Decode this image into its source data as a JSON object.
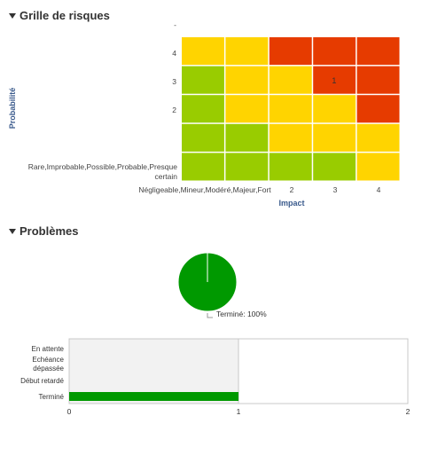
{
  "sections": {
    "risk_title": "Grille de risques",
    "problems_title": "Problèmes"
  },
  "chart_data": [
    {
      "type": "heatmap",
      "xlabel": "Impact",
      "ylabel": "Probabilité",
      "x_tick_labels": [
        "Négligeable,Mineur,Modéré,Majeur,Fort",
        "2",
        "3",
        "4"
      ],
      "y_tick_labels": [
        "Rare,Improbable,Possible,Probable,Presque certain",
        "2",
        "3",
        "4",
        "-"
      ],
      "rows_top_to_bottom": [
        [
          "yellow",
          "yellow",
          "red",
          "red",
          "red"
        ],
        [
          "green",
          "yellow",
          "yellow",
          "red",
          "red"
        ],
        [
          "green",
          "yellow",
          "yellow",
          "yellow",
          "red"
        ],
        [
          "green",
          "green",
          "yellow",
          "yellow",
          "yellow"
        ],
        [
          "green",
          "green",
          "green",
          "green",
          "yellow"
        ]
      ],
      "cell_values": [
        {
          "row": 1,
          "col": 3,
          "value": "1"
        }
      ],
      "colors": {
        "green": "#99cc00",
        "yellow": "#ffd400",
        "red": "#e63b00"
      }
    },
    {
      "type": "pie",
      "slices": [
        {
          "label": "Terminé",
          "value": 100,
          "color": "#009900"
        }
      ],
      "label_text": "Terminé: 100%"
    },
    {
      "type": "bar",
      "orientation": "horizontal",
      "categories": [
        "En attente",
        "Echéance dépassée",
        "Début retardé",
        "Terminé"
      ],
      "values": [
        0,
        0,
        0,
        1
      ],
      "xlim": [
        0,
        2
      ],
      "x_ticks": [
        "0",
        "1",
        "2"
      ],
      "bar_color": "#009900"
    }
  ]
}
